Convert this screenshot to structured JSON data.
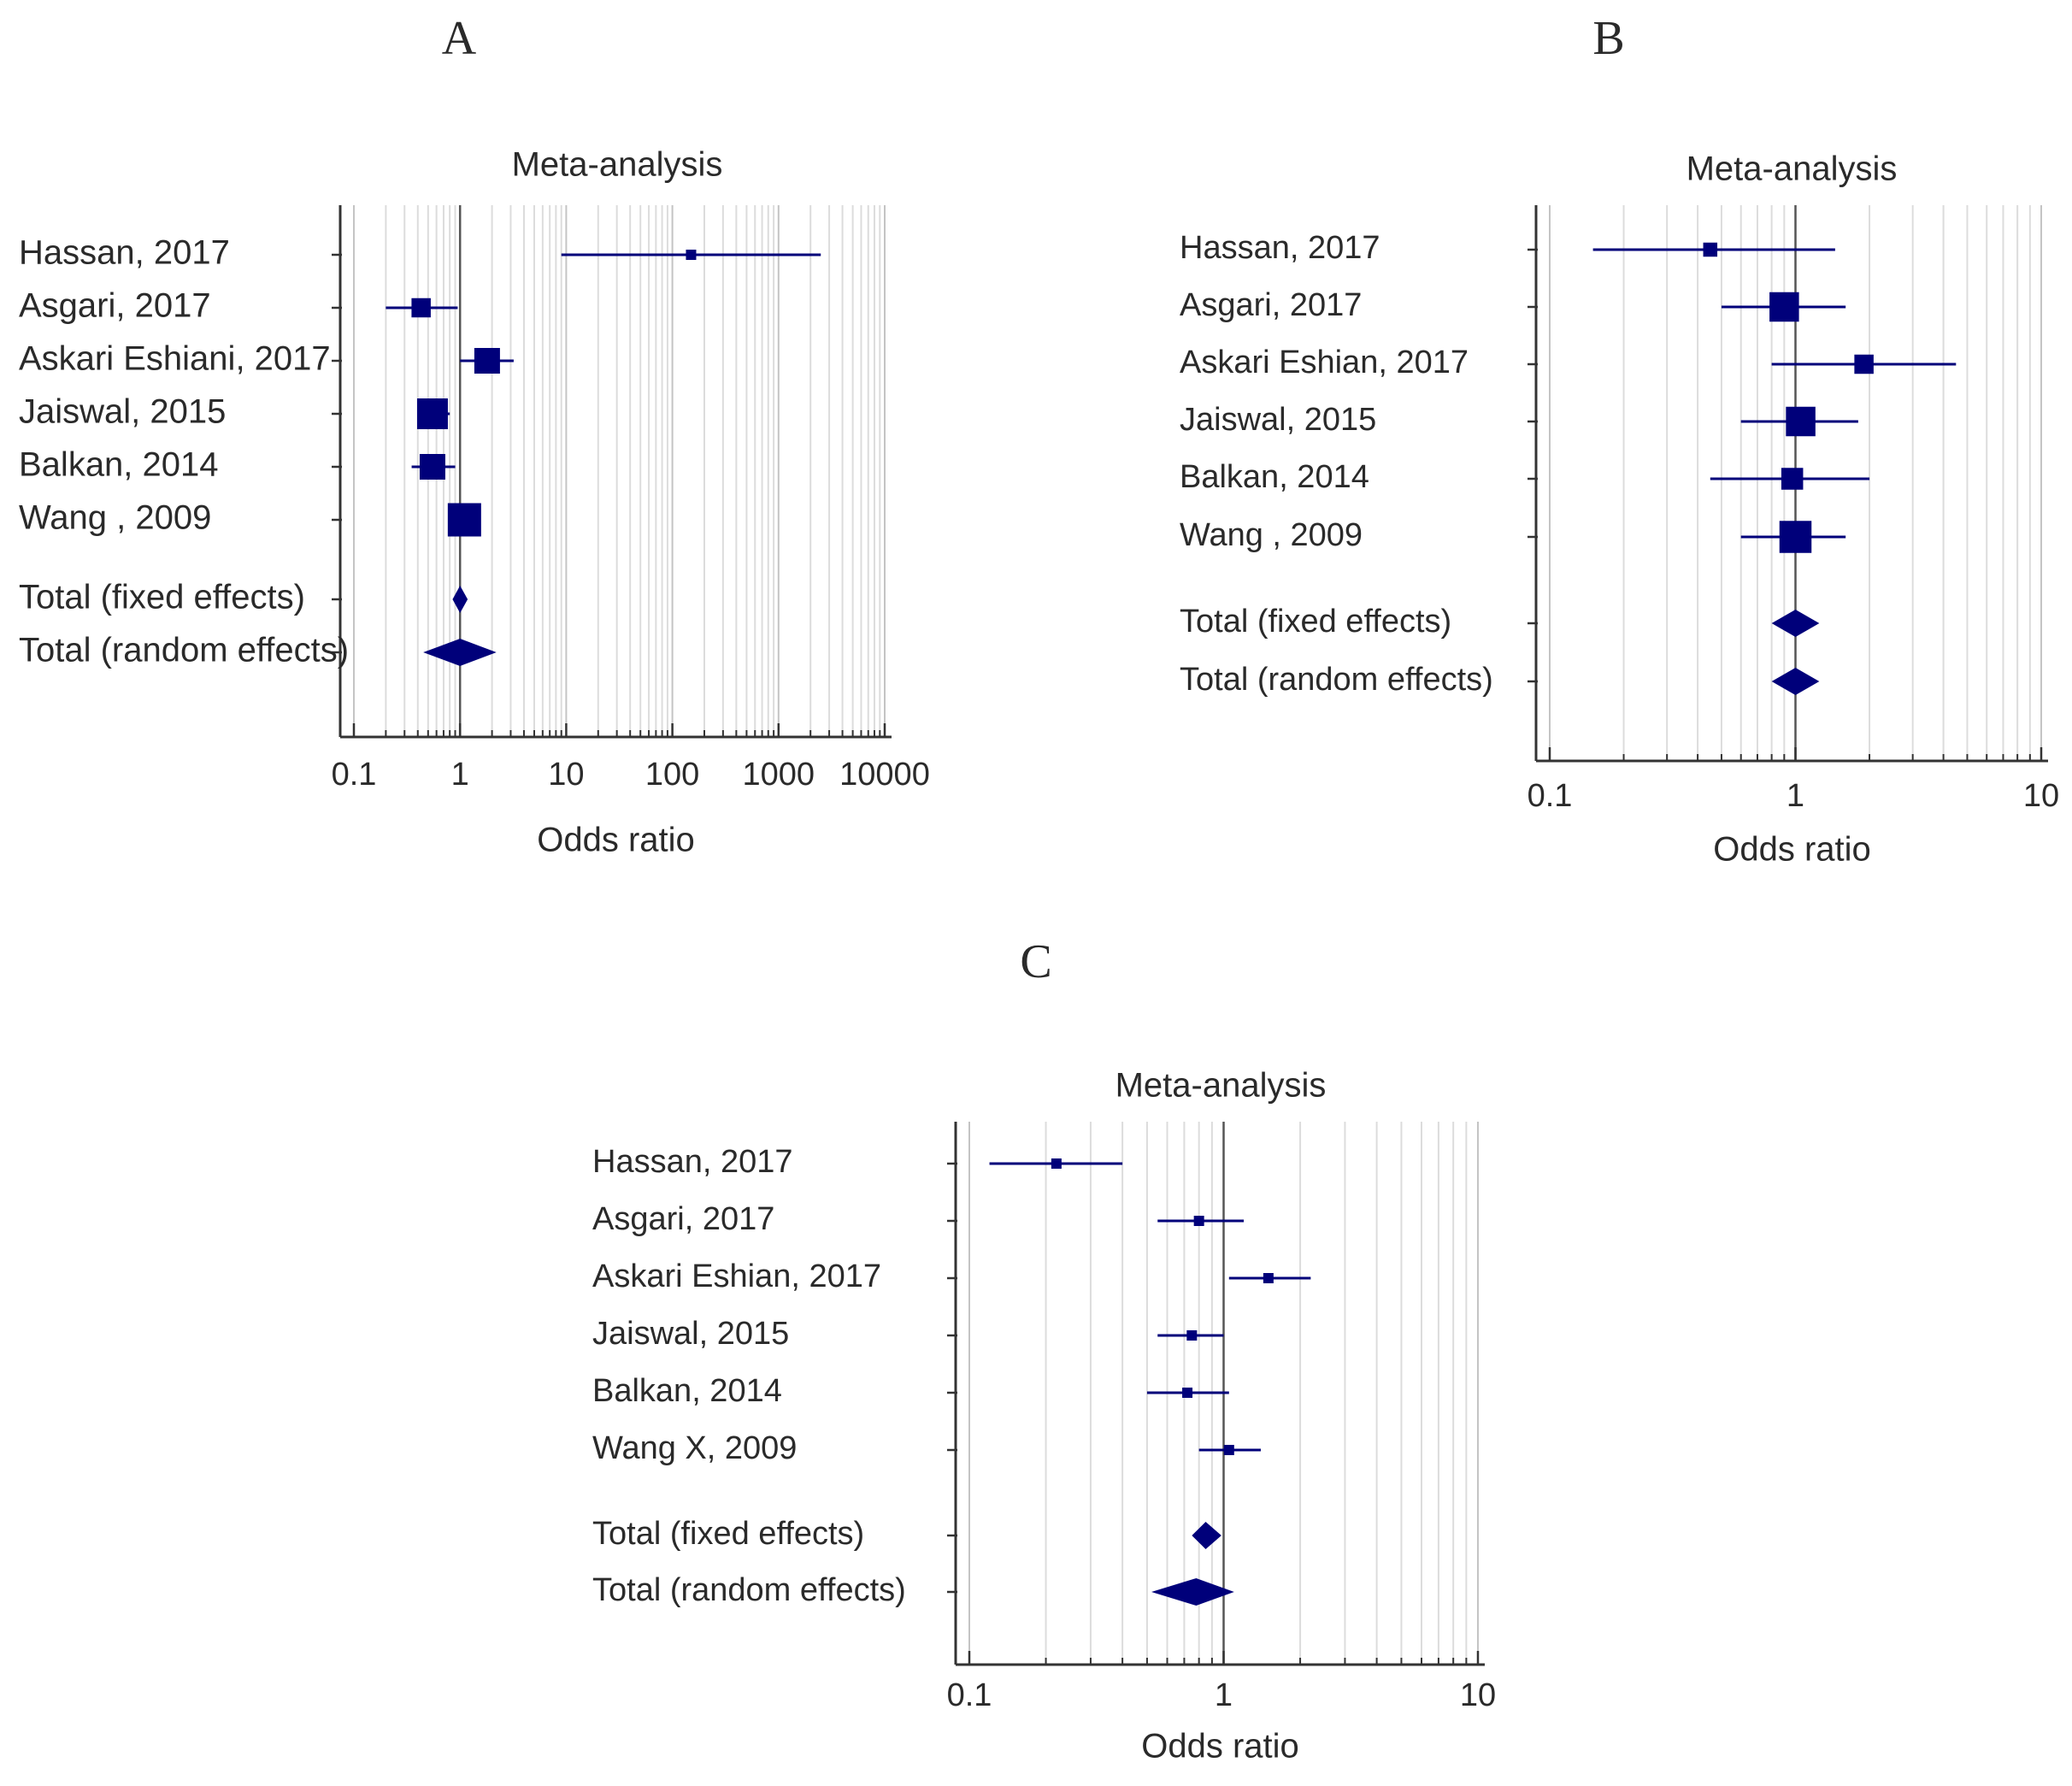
{
  "chart_data": [
    {
      "type": "forest",
      "panel_label": "A",
      "title": "Meta-analysis",
      "xlabel": "Odds ratio",
      "xscale": "log",
      "xlim": [
        0.1,
        10000
      ],
      "xticks": [
        0.1,
        1,
        10,
        100,
        1000,
        10000
      ],
      "xtick_labels": [
        "0.1",
        "1",
        "10",
        "100",
        "1000",
        "10000"
      ],
      "reference_line": 1,
      "studies": [
        {
          "label": "Hassan, 2017",
          "or": 150,
          "ci": [
            9,
            2500
          ],
          "weight": 0.4
        },
        {
          "label": "Asgari, 2017",
          "or": 0.43,
          "ci": [
            0.2,
            0.95
          ],
          "weight": 0.75
        },
        {
          "label": "Askari Eshiani, 2017",
          "or": 1.8,
          "ci": [
            1.0,
            3.2
          ],
          "weight": 1.0
        },
        {
          "label": "Jaiswal, 2015",
          "or": 0.55,
          "ci": [
            0.4,
            0.8
          ],
          "weight": 1.2
        },
        {
          "label": "Balkan, 2014",
          "or": 0.55,
          "ci": [
            0.35,
            0.9
          ],
          "weight": 1.0
        },
        {
          "label": "Wang    , 2009",
          "or": 1.1,
          "ci": [
            0.85,
            1.5
          ],
          "weight": 1.3
        }
      ],
      "totals": [
        {
          "label": "Total (fixed effects)",
          "or": 1.0,
          "ci": [
            0.85,
            1.18
          ]
        },
        {
          "label": "Total (random effects)",
          "or": 1.0,
          "ci": [
            0.45,
            2.2
          ]
        }
      ]
    },
    {
      "type": "forest",
      "panel_label": "B",
      "title": "Meta-analysis",
      "xlabel": "Odds ratio",
      "xscale": "log",
      "xlim": [
        0.1,
        10
      ],
      "xticks": [
        0.1,
        1,
        10
      ],
      "xtick_labels": [
        "0.1",
        "1",
        "10"
      ],
      "reference_line": 1,
      "studies": [
        {
          "label": "Hassan, 2017",
          "or": 0.45,
          "ci": [
            0.15,
            1.45
          ],
          "weight": 0.55
        },
        {
          "label": "Asgari, 2017",
          "or": 0.9,
          "ci": [
            0.5,
            1.6
          ],
          "weight": 1.15
        },
        {
          "label": "Askari Eshian, 2017",
          "or": 1.9,
          "ci": [
            0.8,
            4.5
          ],
          "weight": 0.75
        },
        {
          "label": "Jaiswal, 2015",
          "or": 1.05,
          "ci": [
            0.6,
            1.8
          ],
          "weight": 1.15
        },
        {
          "label": "Balkan, 2014",
          "or": 0.97,
          "ci": [
            0.45,
            2.0
          ],
          "weight": 0.85
        },
        {
          "label": "Wang    , 2009",
          "or": 1.0,
          "ci": [
            0.6,
            1.6
          ],
          "weight": 1.25
        }
      ],
      "totals": [
        {
          "label": "Total (fixed effects)",
          "or": 1.0,
          "ci": [
            0.8,
            1.25
          ]
        },
        {
          "label": "Total (random effects)",
          "or": 1.0,
          "ci": [
            0.8,
            1.25
          ]
        }
      ]
    },
    {
      "type": "forest",
      "panel_label": "C",
      "title": "Meta-analysis",
      "xlabel": "Odds ratio",
      "xscale": "log",
      "xlim": [
        0.1,
        10
      ],
      "xticks": [
        0.1,
        1,
        10
      ],
      "xtick_labels": [
        "0.1",
        "1",
        "10"
      ],
      "reference_line": 1,
      "studies": [
        {
          "label": "Hassan, 2017",
          "or": 0.22,
          "ci": [
            0.12,
            0.4
          ],
          "weight": 0.5
        },
        {
          "label": "Asgari, 2017",
          "or": 0.8,
          "ci": [
            0.55,
            1.2
          ],
          "weight": 0.5
        },
        {
          "label": "Askari Eshian, 2017",
          "or": 1.5,
          "ci": [
            1.05,
            2.2
          ],
          "weight": 0.5
        },
        {
          "label": "Jaiswal, 2015",
          "or": 0.75,
          "ci": [
            0.55,
            1.0
          ],
          "weight": 0.5
        },
        {
          "label": "Balkan, 2014",
          "or": 0.72,
          "ci": [
            0.5,
            1.05
          ],
          "weight": 0.5
        },
        {
          "label": "Wang X, 2009",
          "or": 1.05,
          "ci": [
            0.8,
            1.4
          ],
          "weight": 0.5
        }
      ],
      "totals": [
        {
          "label": "Total (fixed effects)",
          "or": 0.85,
          "ci": [
            0.75,
            0.98
          ]
        },
        {
          "label": "Total (random effects)",
          "or": 0.78,
          "ci": [
            0.52,
            1.1
          ]
        }
      ]
    }
  ],
  "colors": {
    "marker": "#00007a",
    "axis": "#333333",
    "gridline": "#dcdcdc",
    "text": "#2a2a2a"
  }
}
